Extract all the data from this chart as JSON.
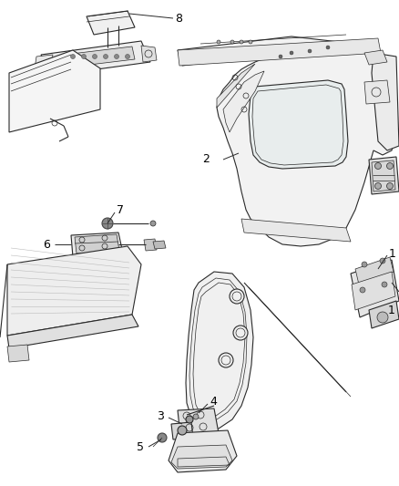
{
  "bg_color": "#ffffff",
  "line_color": "#2a2a2a",
  "label_color": "#000000",
  "label_fontsize": 9,
  "fig_width": 4.38,
  "fig_height": 5.33,
  "dpi": 100
}
